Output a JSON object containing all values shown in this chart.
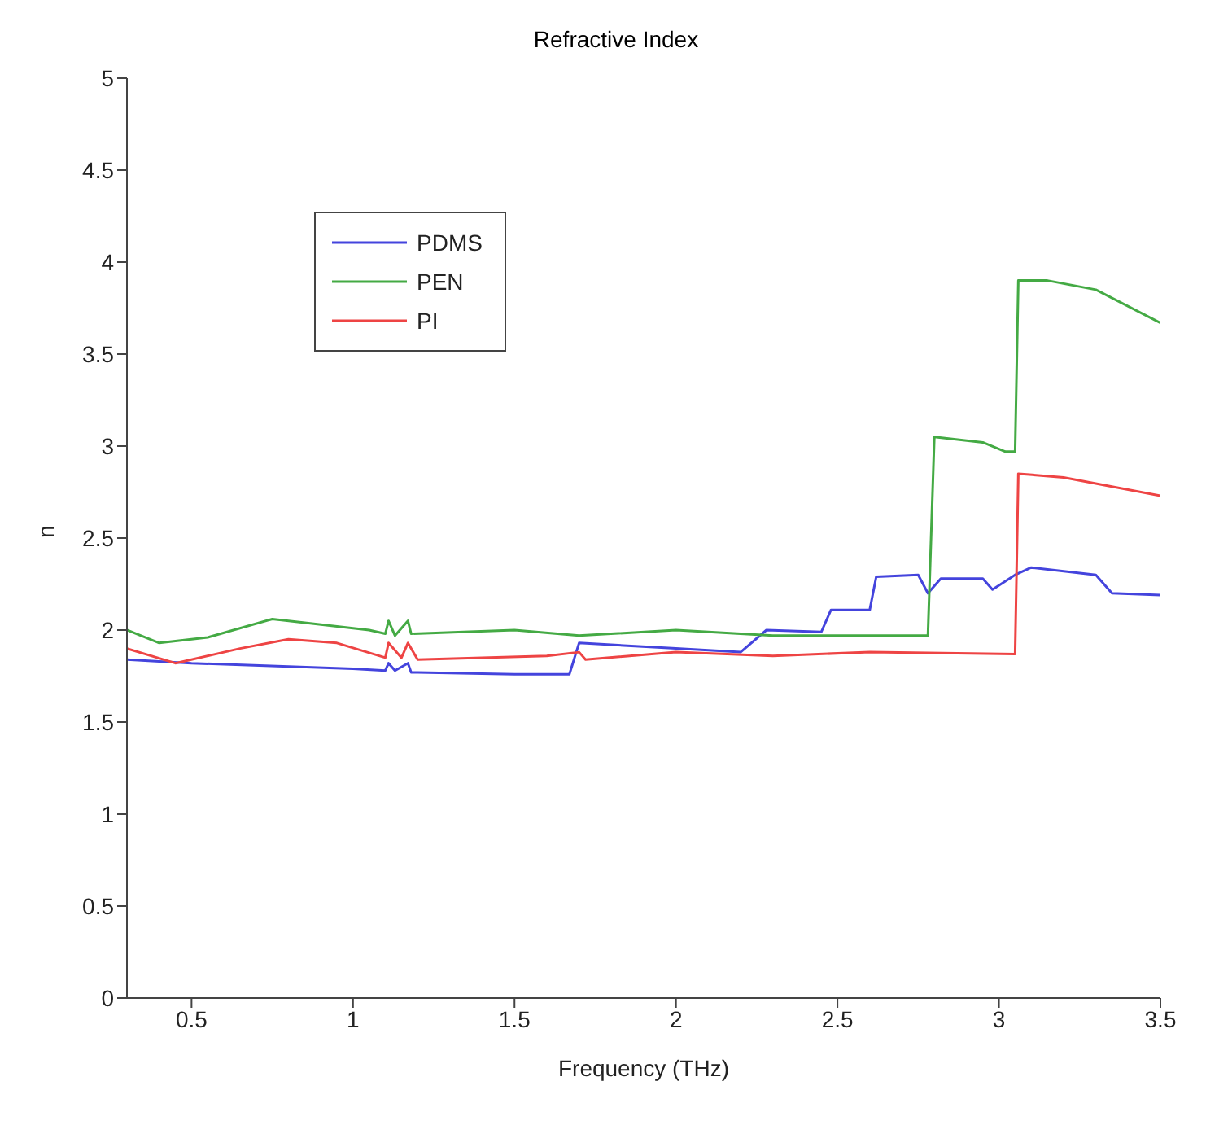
{
  "chart_data": {
    "type": "line",
    "title": "Refractive Index",
    "xlabel": "Frequency (THz)",
    "ylabel": "n",
    "xlim": [
      0.3,
      3.5
    ],
    "xticks": [
      0.5,
      1,
      1.5,
      2,
      2.5,
      3,
      3.5
    ],
    "ylim": [
      0,
      5
    ],
    "yticks": [
      0,
      0.5,
      1,
      1.5,
      2,
      2.5,
      3,
      3.5,
      4,
      4.5,
      5
    ],
    "grid": false,
    "legend": "top left",
    "series": [
      {
        "name": "PDMS",
        "color": "#4444dd",
        "x": [
          0.3,
          0.5,
          1.0,
          1.1,
          1.11,
          1.13,
          1.17,
          1.18,
          1.2,
          1.5,
          1.67,
          1.7,
          2.0,
          2.2,
          2.28,
          2.45,
          2.48,
          2.6,
          2.62,
          2.75,
          2.78,
          2.82,
          2.95,
          2.98,
          3.05,
          3.1,
          3.3,
          3.35,
          3.5
        ],
        "values": [
          1.84,
          1.82,
          1.79,
          1.78,
          1.82,
          1.78,
          1.82,
          1.77,
          1.77,
          1.76,
          1.76,
          1.93,
          1.9,
          1.88,
          2.0,
          1.99,
          2.11,
          2.11,
          2.29,
          2.3,
          2.2,
          2.28,
          2.28,
          2.22,
          2.3,
          2.34,
          2.3,
          2.2,
          2.19
        ]
      },
      {
        "name": "PEN",
        "color": "#44aa44",
        "x": [
          0.3,
          0.4,
          0.55,
          0.75,
          1.05,
          1.1,
          1.11,
          1.13,
          1.17,
          1.18,
          1.5,
          1.7,
          2.0,
          2.3,
          2.78,
          2.8,
          2.95,
          3.02,
          3.05,
          3.06,
          3.15,
          3.3,
          3.5
        ],
        "values": [
          2.0,
          1.93,
          1.96,
          2.06,
          2.0,
          1.98,
          2.05,
          1.97,
          2.05,
          1.98,
          2.0,
          1.97,
          2.0,
          1.97,
          1.97,
          3.05,
          3.02,
          2.97,
          2.97,
          3.9,
          3.9,
          3.85,
          3.67
        ]
      },
      {
        "name": "PI",
        "color": "#ee4444",
        "x": [
          0.3,
          0.45,
          0.65,
          0.8,
          0.95,
          1.1,
          1.11,
          1.15,
          1.17,
          1.2,
          1.6,
          1.7,
          1.72,
          2.0,
          2.3,
          2.6,
          3.05,
          3.06,
          3.2,
          3.5
        ],
        "values": [
          1.9,
          1.82,
          1.9,
          1.95,
          1.93,
          1.85,
          1.93,
          1.85,
          1.93,
          1.84,
          1.86,
          1.88,
          1.84,
          1.88,
          1.86,
          1.88,
          1.87,
          2.85,
          2.83,
          2.73
        ]
      }
    ]
  }
}
